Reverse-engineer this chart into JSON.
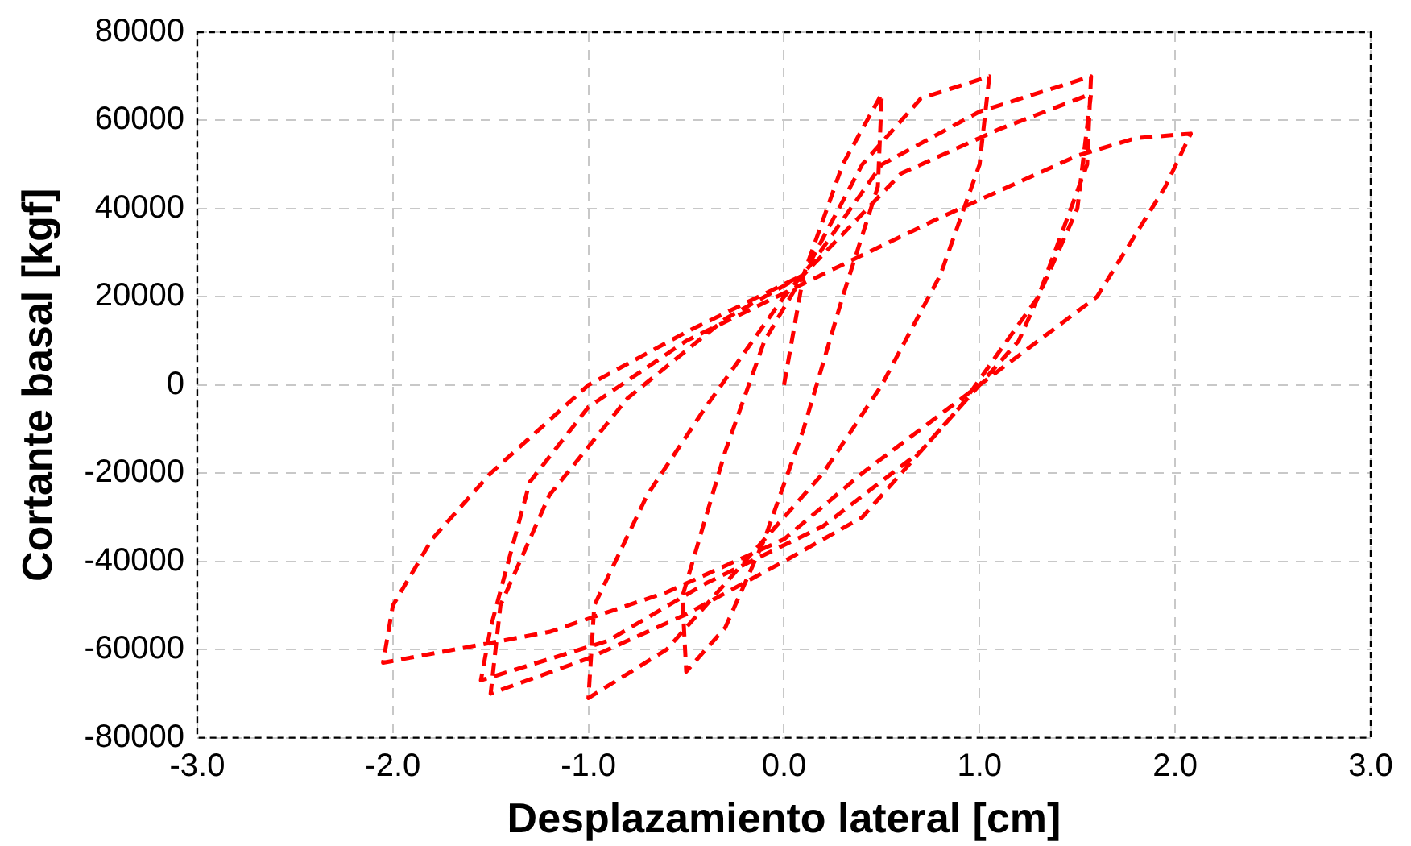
{
  "chart_data": {
    "type": "line",
    "xlabel": "Desplazamiento lateral [cm]",
    "ylabel": "Cortante basal [kgf]",
    "xlim": [
      -3,
      3
    ],
    "xticks": [
      {
        "value": -3,
        "label": "-3.0"
      },
      {
        "value": -2,
        "label": "-2.0"
      },
      {
        "value": -1,
        "label": "-1.0"
      },
      {
        "value": 0,
        "label": "0.0"
      },
      {
        "value": 1,
        "label": "1.0"
      },
      {
        "value": 2,
        "label": "2.0"
      },
      {
        "value": 3,
        "label": "3.0"
      }
    ],
    "ylim": [
      -80000,
      80000
    ],
    "yticks": [
      -80000,
      -60000,
      -40000,
      -20000,
      0,
      20000,
      40000,
      60000,
      80000
    ],
    "grid": true,
    "legend": false,
    "marker": "none",
    "line_style": "dashed",
    "series": [
      {
        "color": "#ff0000",
        "x": [
          0,
          0.1,
          0.3,
          0.5,
          0.48,
          0.3,
          0.1,
          -0.1,
          -0.3,
          -0.5,
          -0.52,
          -0.3,
          -0.1,
          0.1,
          0.4,
          0.7,
          1.05,
          1.0,
          0.8,
          0.5,
          0.2,
          0,
          -0.3,
          -0.6,
          -1.0,
          -0.97,
          -0.7,
          -0.4,
          0,
          0.15,
          0.5,
          1.0,
          1.57,
          1.55,
          1.3,
          0.9,
          0.4,
          0,
          -0.5,
          -1.0,
          -1.5,
          -1.45,
          -1.2,
          -0.8,
          -0.3,
          0.1,
          0.6,
          1.1,
          1.57,
          1.5,
          1.2,
          0.7,
          0.2,
          -0.4,
          -0.9,
          -1.55,
          -1.5,
          -1.3,
          -1.0,
          -0.5,
          0.1,
          0.8,
          1.5,
          1.8,
          2.08,
          1.95,
          1.6,
          1.0,
          0.4,
          0,
          -0.6,
          -1.2,
          -2.05,
          -2.0,
          -1.8,
          -1.5,
          -1.0,
          -0.5,
          0.1
        ],
        "values": [
          0,
          25000,
          50000,
          66000,
          45000,
          20000,
          -10000,
          -35000,
          -55000,
          -65000,
          -48000,
          -15000,
          10000,
          25000,
          50000,
          65000,
          70000,
          50000,
          25000,
          0,
          -20000,
          -30000,
          -45000,
          -60000,
          -71000,
          -50000,
          -25000,
          -5000,
          20000,
          28000,
          50000,
          62000,
          70000,
          50000,
          20000,
          -5000,
          -30000,
          -40000,
          -52000,
          -62000,
          -70000,
          -50000,
          -25000,
          -3000,
          15000,
          25000,
          48000,
          58000,
          66000,
          40000,
          10000,
          -15000,
          -32000,
          -45000,
          -58000,
          -67000,
          -55000,
          -22000,
          -5000,
          10000,
          23000,
          38000,
          52000,
          56000,
          57000,
          45000,
          20000,
          0,
          -20000,
          -35000,
          -47000,
          -56000,
          -63000,
          -50000,
          -35000,
          -20000,
          0,
          12000,
          25000
        ]
      }
    ]
  }
}
